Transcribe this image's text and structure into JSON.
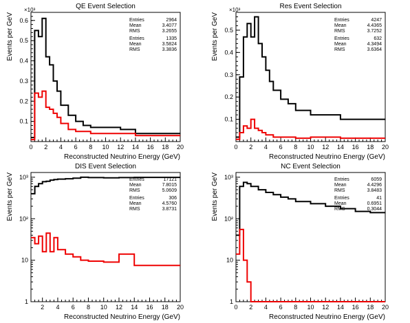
{
  "chart_data": [
    {
      "type": "step",
      "title": "QE Event Selection",
      "xlabel": "Reconstructed Neutrino Energy (GeV)",
      "ylabel": "Events per GeV",
      "y_exponent_label": "×10³",
      "y_scale": "linear",
      "ylim": [
        0,
        0.64
      ],
      "xlim": [
        0,
        20
      ],
      "x_ticks": [
        "0",
        "2",
        "4",
        "6",
        "8",
        "10",
        "12",
        "14",
        "16",
        "18",
        "20"
      ],
      "y_ticks": [
        "0.1",
        "0.2",
        "0.3",
        "0.4",
        "0.5",
        "0.6"
      ],
      "y_tick_values": [
        0.1,
        0.2,
        0.3,
        0.4,
        0.5,
        0.6
      ],
      "edges": [
        0,
        0.5,
        1,
        1.5,
        2,
        2.5,
        3,
        3.5,
        4,
        5,
        6,
        7,
        8,
        10,
        12,
        14,
        20
      ],
      "series": [
        {
          "color": "#000000",
          "values": [
            0.02,
            0.55,
            0.52,
            0.61,
            0.42,
            0.38,
            0.3,
            0.25,
            0.18,
            0.13,
            0.1,
            0.08,
            0.07,
            0.07,
            0.06,
            0.04
          ]
        },
        {
          "color": "#ee0000",
          "values": [
            0.01,
            0.24,
            0.22,
            0.25,
            0.17,
            0.16,
            0.14,
            0.12,
            0.09,
            0.06,
            0.05,
            0.05,
            0.04,
            0.04,
            0.04,
            0.03
          ]
        }
      ],
      "stats": [
        {
          "rows": [
            [
              "Entries",
              "2964"
            ],
            [
              "Mean",
              "3.4077"
            ],
            [
              "RMS",
              "3.2655"
            ]
          ]
        },
        {
          "rows": [
            [
              "Entries",
              "1335"
            ],
            [
              "Mean",
              "3.5824"
            ],
            [
              "RMS",
              "3.3836"
            ]
          ]
        }
      ]
    },
    {
      "type": "step",
      "title": "Res Event Selection",
      "xlabel": "Reconstructed Neutrino Energy (GeV)",
      "ylabel": "Events per GeV",
      "y_exponent_label": "×10³",
      "y_scale": "linear",
      "ylim": [
        0,
        0.58
      ],
      "xlim": [
        0,
        20
      ],
      "x_ticks": [
        "0",
        "2",
        "4",
        "6",
        "8",
        "10",
        "12",
        "14",
        "16",
        "18",
        "20"
      ],
      "y_ticks": [
        "0.1",
        "0.2",
        "0.3",
        "0.4",
        "0.5"
      ],
      "y_tick_values": [
        0.1,
        0.2,
        0.3,
        0.4,
        0.5
      ],
      "edges": [
        0,
        0.5,
        1,
        1.5,
        2,
        2.5,
        3,
        3.5,
        4,
        4.5,
        5,
        6,
        7,
        8,
        10,
        14,
        20
      ],
      "series": [
        {
          "color": "#000000",
          "values": [
            0.02,
            0.29,
            0.47,
            0.53,
            0.47,
            0.56,
            0.44,
            0.38,
            0.32,
            0.27,
            0.23,
            0.19,
            0.17,
            0.14,
            0.12,
            0.1
          ]
        },
        {
          "color": "#ee0000",
          "values": [
            0.01,
            0.04,
            0.07,
            0.06,
            0.1,
            0.06,
            0.05,
            0.04,
            0.03,
            0.03,
            0.02,
            0.02,
            0.02,
            0.015,
            0.02,
            0.015
          ]
        }
      ],
      "stats": [
        {
          "rows": [
            [
              "Entries",
              "4247"
            ],
            [
              "Mean",
              "4.4365"
            ],
            [
              "RMS",
              "3.7252"
            ]
          ]
        },
        {
          "rows": [
            [
              "Entries",
              "632"
            ],
            [
              "Mean",
              "4.3494"
            ],
            [
              "RMS",
              "3.6364"
            ]
          ]
        }
      ]
    },
    {
      "type": "step",
      "title": "DIS Event Selection",
      "xlabel": "Reconstructed Neutrino Energy (GeV)",
      "ylabel": "Events per GeV",
      "y_scale": "log",
      "ylim": [
        1,
        1300
      ],
      "xlim": [
        0.5,
        20
      ],
      "x_ticks": [
        "2",
        "4",
        "6",
        "8",
        "10",
        "12",
        "14",
        "16",
        "18",
        "20"
      ],
      "x_tick_values": [
        2,
        4,
        6,
        8,
        10,
        12,
        14,
        16,
        18,
        20
      ],
      "y_ticks": [
        "1",
        "10",
        "10²",
        "10³"
      ],
      "y_tick_values": [
        1,
        10,
        100,
        1000
      ],
      "edges": [
        0.5,
        1,
        1.5,
        2,
        2.5,
        3,
        3.5,
        4,
        5,
        6,
        7,
        8,
        10,
        12,
        14,
        20
      ],
      "series": [
        {
          "color": "#000000",
          "values": [
            400,
            600,
            700,
            780,
            800,
            850,
            880,
            900,
            920,
            950,
            1000,
            980,
            970,
            980,
            990
          ]
        },
        {
          "color": "#ee0000",
          "values": [
            35,
            25,
            38,
            16,
            45,
            16,
            35,
            18,
            14,
            12,
            10,
            9.5,
            9,
            14,
            7.5
          ]
        }
      ],
      "stats": [
        {
          "rows": [
            [
              "Entries",
              "17121"
            ],
            [
              "Mean",
              "7.8015"
            ],
            [
              "RMS",
              "5.0609"
            ]
          ]
        },
        {
          "rows": [
            [
              "Entries",
              "306"
            ],
            [
              "Mean",
              "4.5760"
            ],
            [
              "RMS",
              "3.8731"
            ]
          ]
        }
      ]
    },
    {
      "type": "step",
      "title": "NC Event Selection",
      "xlabel": "Reconstructed Neutrino Energy (GeV)",
      "ylabel": "Events per GeV",
      "y_scale": "log",
      "ylim": [
        1,
        1300
      ],
      "xlim": [
        0,
        20
      ],
      "x_ticks": [
        "0",
        "2",
        "4",
        "6",
        "8",
        "10",
        "12",
        "14",
        "16",
        "18",
        "20"
      ],
      "y_ticks": [
        "1",
        "10",
        "10²",
        "10³"
      ],
      "y_tick_values": [
        1,
        10,
        100,
        1000
      ],
      "edges": [
        0,
        0.5,
        1,
        1.5,
        2,
        3,
        4,
        5,
        6,
        7,
        8,
        10,
        12,
        14,
        16,
        18,
        20
      ],
      "series": [
        {
          "color": "#000000",
          "values": [
            40,
            600,
            750,
            700,
            600,
            500,
            430,
            380,
            330,
            300,
            260,
            230,
            200,
            175,
            150,
            140
          ]
        },
        {
          "color": "#ee0000",
          "values": [
            14,
            55,
            10,
            3,
            1,
            1,
            1,
            1,
            1,
            1,
            1,
            1,
            1,
            1,
            1,
            1
          ]
        }
      ],
      "stats": [
        {
          "rows": [
            [
              "Entries",
              "6059"
            ],
            [
              "Mean",
              "4.4296"
            ],
            [
              "RMS",
              "3.8483"
            ]
          ]
        },
        {
          "rows": [
            [
              "Entries",
              "41"
            ],
            [
              "Mean",
              "0.6951"
            ],
            [
              "RMS",
              "0.3044"
            ]
          ]
        }
      ]
    }
  ]
}
